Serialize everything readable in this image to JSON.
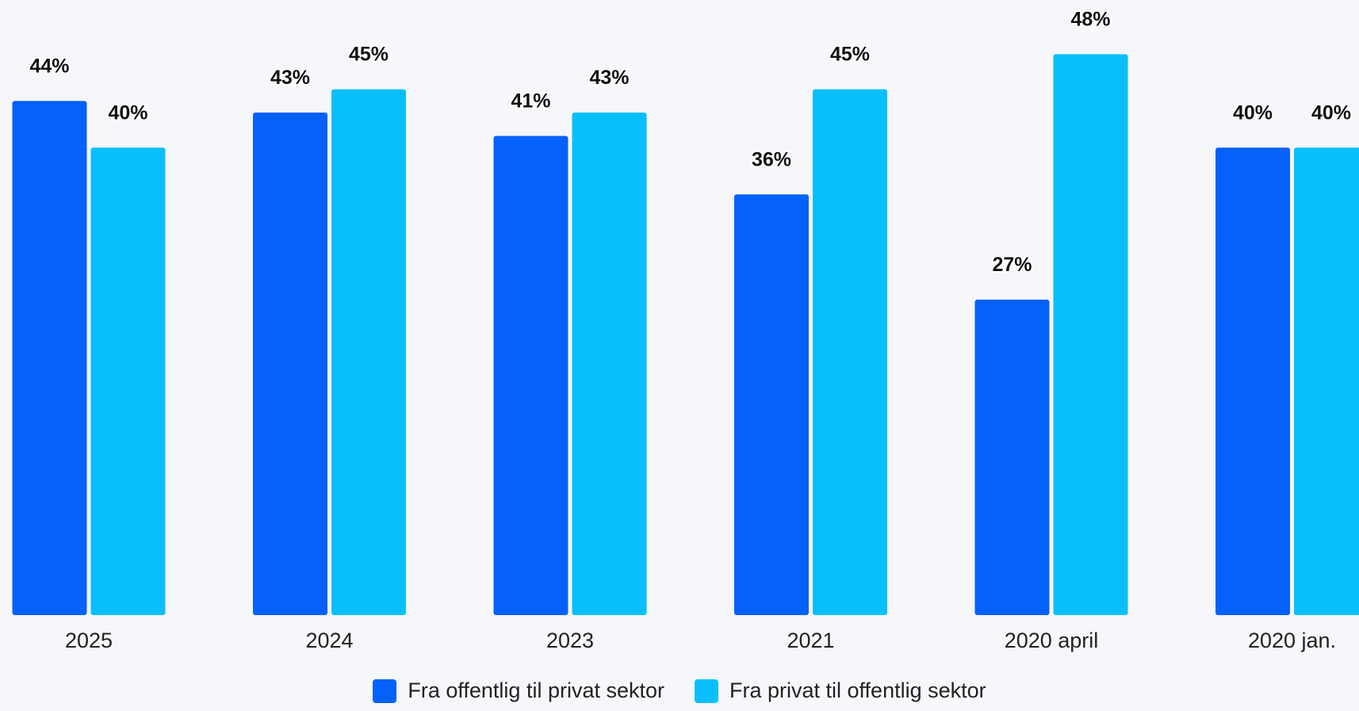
{
  "chart_data": {
    "type": "bar",
    "categories": [
      "2025",
      "2024",
      "2023",
      "2021",
      "2020 april",
      "2020 jan."
    ],
    "series": [
      {
        "name": "Fra offentlig til privat sektor",
        "values": [
          44,
          43,
          41,
          36,
          27,
          40
        ],
        "labels": [
          "44%",
          "43%",
          "41%",
          "36%",
          "27%",
          "40%"
        ],
        "color": "#0561fc"
      },
      {
        "name": "Fra privat til offentlig sektor",
        "values": [
          40,
          45,
          43,
          45,
          48,
          40
        ],
        "labels": [
          "40%",
          "45%",
          "43%",
          "45%",
          "48%",
          "40%"
        ],
        "color": "#08bffb"
      }
    ],
    "ylim": [
      0,
      52.5
    ],
    "grid": false,
    "legend_position": "bottom-center"
  }
}
